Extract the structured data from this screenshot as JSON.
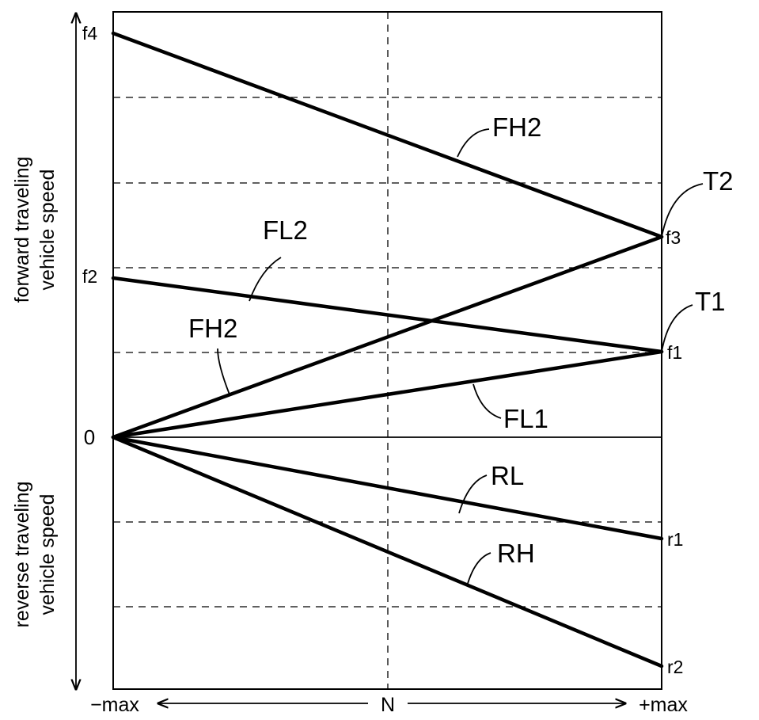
{
  "y_axis": {
    "forward_label_line1": "forward traveling",
    "forward_label_line2": "vehicle speed",
    "reverse_label_line1": "reverse traveling",
    "reverse_label_line2": "vehicle speed",
    "zero": "0"
  },
  "x_axis": {
    "left": "−max",
    "center": "N",
    "right": "+max"
  },
  "left_ticks": {
    "f4": "f4",
    "f2": "f2"
  },
  "right_ticks": {
    "f3": "f3",
    "f1": "f1",
    "r1": "r1",
    "r2": "r2"
  },
  "curve_labels": {
    "fh2_top": "FH2",
    "fl2": "FL2",
    "fh2_mid": "FH2",
    "fl1": "FL1",
    "rl": "RL",
    "rh": "RH",
    "t2": "T2",
    "t1": "T1"
  },
  "colors": {
    "ink": "#000000",
    "background": "#ffffff"
  }
}
